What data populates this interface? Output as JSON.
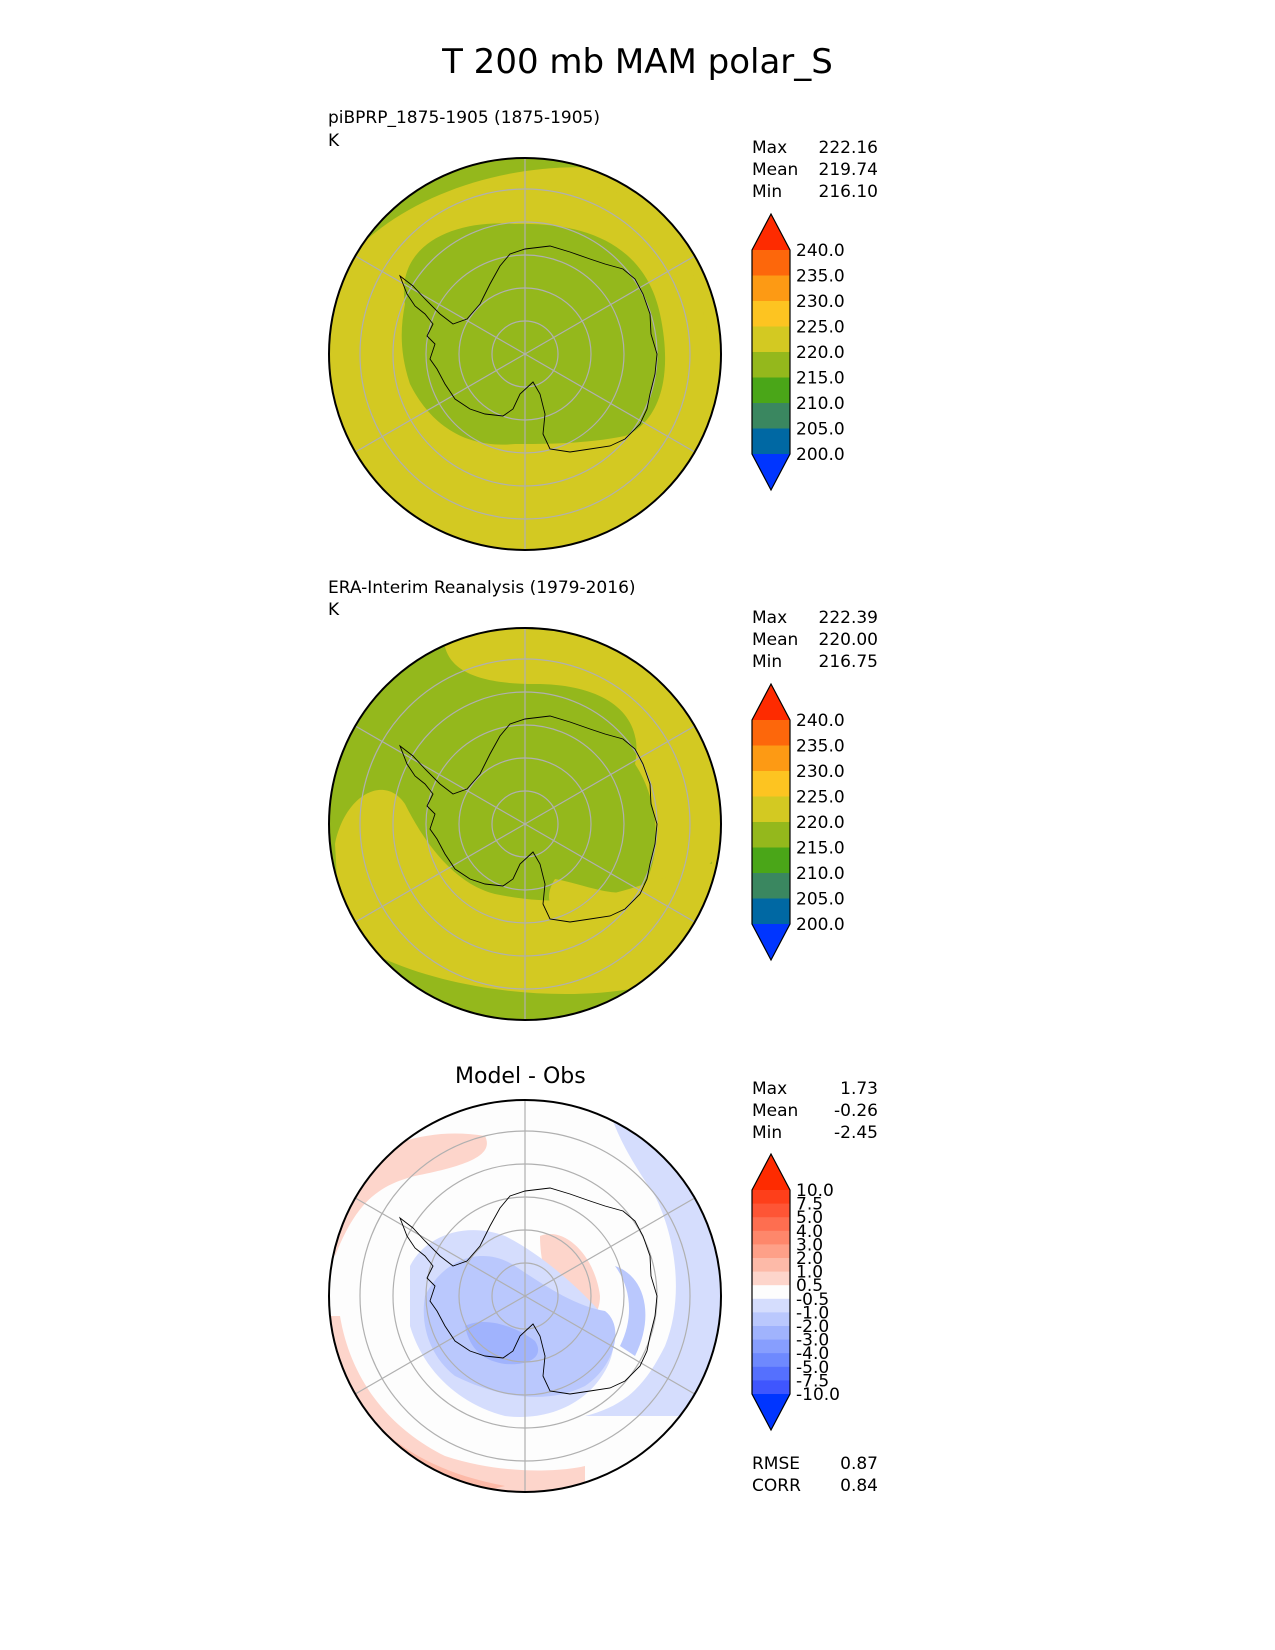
{
  "title": "T 200 mb MAM polar_S",
  "units": "K",
  "colors": {
    "c200": "#0035ff",
    "c205": "#0068a3",
    "c210": "#3a8760",
    "c215": "#4aa618",
    "c220": "#94b81c",
    "c225": "#d3c922",
    "c230": "#fdc421",
    "c235": "#fd9a14",
    "c240": "#fd670b",
    "cmax": "#fe2b00",
    "coast": "#000000",
    "grid": "#b0b0b0"
  },
  "panels": [
    {
      "name": "model",
      "label": "piBPRP_1875-1905 (1875-1905)",
      "units": "K",
      "stats": [
        {
          "label": "Max",
          "value": "222.16"
        },
        {
          "label": "Mean",
          "value": "219.74"
        },
        {
          "label": "Min",
          "value": "216.10"
        }
      ]
    },
    {
      "name": "obs",
      "label": "ERA-Interim Reanalysis (1979-2016)",
      "units": "K",
      "stats": [
        {
          "label": "Max",
          "value": "222.39"
        },
        {
          "label": "Mean",
          "value": "220.00"
        },
        {
          "label": "Min",
          "value": "216.75"
        }
      ]
    },
    {
      "name": "diff",
      "title": "Model - Obs",
      "stats": [
        {
          "label": "Max",
          "value": "1.73"
        },
        {
          "label": "Mean",
          "value": "-0.26"
        },
        {
          "label": "Min",
          "value": "-2.45"
        }
      ],
      "metrics": [
        {
          "label": "RMSE",
          "value": "0.87"
        },
        {
          "label": "CORR",
          "value": "0.84"
        }
      ]
    }
  ],
  "chart_data": [
    {
      "type": "heatmap",
      "projection": "south polar stereographic",
      "title": "piBPRP_1875-1905 (1875-1905)",
      "units": "K",
      "levels": [
        200.0,
        205.0,
        210.0,
        215.0,
        220.0,
        225.0,
        230.0,
        235.0,
        240.0
      ],
      "colorbar_labels": [
        "240.0",
        "235.0",
        "230.0",
        "225.0",
        "220.0",
        "215.0",
        "210.0",
        "205.0",
        "200.0"
      ],
      "colorbar_colors": [
        "#fe2b00",
        "#fd670b",
        "#fd9a14",
        "#fdc421",
        "#d3c922",
        "#94b81c",
        "#4aa618",
        "#3a8760",
        "#0068a3",
        "#0035ff"
      ],
      "max": 222.16,
      "mean": 219.74,
      "min": 216.1,
      "field_description": "215-220 K over Antarctic interior and outer ring edges, 220-225 K annulus in mid-latitudes"
    },
    {
      "type": "heatmap",
      "projection": "south polar stereographic",
      "title": "ERA-Interim Reanalysis (1979-2016)",
      "units": "K",
      "levels": [
        200.0,
        205.0,
        210.0,
        215.0,
        220.0,
        225.0,
        230.0,
        235.0,
        240.0
      ],
      "colorbar_labels": [
        "240.0",
        "235.0",
        "230.0",
        "225.0",
        "220.0",
        "215.0",
        "210.0",
        "205.0",
        "200.0"
      ],
      "colorbar_colors": [
        "#fe2b00",
        "#fd670b",
        "#fd9a14",
        "#fdc421",
        "#d3c922",
        "#94b81c",
        "#4aa618",
        "#3a8760",
        "#0068a3",
        "#0035ff"
      ],
      "max": 222.39,
      "mean": 220.0,
      "min": 216.75
    },
    {
      "type": "heatmap",
      "projection": "south polar stereographic",
      "title": "Model - Obs",
      "levels": [
        -10.0,
        -7.5,
        -5.0,
        -4.0,
        -3.0,
        -2.0,
        -1.0,
        -0.5,
        0.5,
        1.0,
        2.0,
        3.0,
        4.0,
        5.0,
        7.5,
        10.0
      ],
      "colorbar_labels": [
        "10.0",
        "7.5",
        "5.0",
        "4.0",
        "3.0",
        "2.0",
        "1.0",
        "0.5",
        "-0.5",
        "-1.0",
        "-2.0",
        "-3.0",
        "-4.0",
        "-5.0",
        "-7.5",
        "-10.0"
      ],
      "colorbar_colors": [
        "#fe2b00",
        "#fe3f1a",
        "#fe5535",
        "#fe6e50",
        "#fe876b",
        "#fea088",
        "#fdbaa8",
        "#fdd5cb",
        "#fdfdfd",
        "#d5ddfd",
        "#bac8fd",
        "#a0b3fd",
        "#879efe",
        "#6e89fe",
        "#5570fe",
        "#3f56fe",
        "#0035ff"
      ],
      "max": 1.73,
      "mean": -0.26,
      "min": -2.45,
      "rmse": 0.87,
      "corr": 0.84
    }
  ]
}
